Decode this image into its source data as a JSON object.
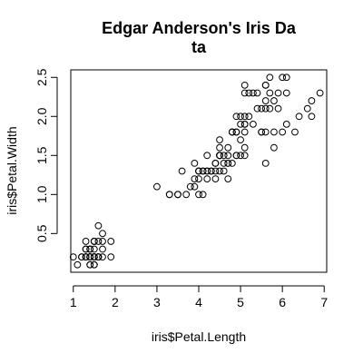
{
  "chart_data": {
    "type": "scatter",
    "title": "Edgar Anderson's Iris Da\nta",
    "xlabel": "iris$Petal.Length",
    "ylabel": "iris$Petal.Width",
    "xlim": [
      0.94,
      7.06
    ],
    "ylim": [
      0.004,
      2.596
    ],
    "xticks": [
      1,
      2,
      3,
      4,
      5,
      6,
      7
    ],
    "yticks": [
      0.5,
      1.0,
      1.5,
      2.0,
      2.5
    ],
    "grid": false,
    "marker": "open-circle",
    "points": [
      [
        1.4,
        0.2
      ],
      [
        1.4,
        0.2
      ],
      [
        1.3,
        0.2
      ],
      [
        1.5,
        0.2
      ],
      [
        1.4,
        0.2
      ],
      [
        1.7,
        0.4
      ],
      [
        1.4,
        0.3
      ],
      [
        1.5,
        0.2
      ],
      [
        1.4,
        0.2
      ],
      [
        1.5,
        0.1
      ],
      [
        1.5,
        0.2
      ],
      [
        1.6,
        0.2
      ],
      [
        1.4,
        0.1
      ],
      [
        1.1,
        0.1
      ],
      [
        1.2,
        0.2
      ],
      [
        1.5,
        0.4
      ],
      [
        1.3,
        0.4
      ],
      [
        1.4,
        0.3
      ],
      [
        1.7,
        0.3
      ],
      [
        1.5,
        0.3
      ],
      [
        1.7,
        0.2
      ],
      [
        1.5,
        0.4
      ],
      [
        1.0,
        0.2
      ],
      [
        1.7,
        0.5
      ],
      [
        1.9,
        0.2
      ],
      [
        1.6,
        0.2
      ],
      [
        1.6,
        0.4
      ],
      [
        1.5,
        0.2
      ],
      [
        1.4,
        0.2
      ],
      [
        1.6,
        0.2
      ],
      [
        1.6,
        0.2
      ],
      [
        1.5,
        0.4
      ],
      [
        1.5,
        0.1
      ],
      [
        1.4,
        0.2
      ],
      [
        1.5,
        0.2
      ],
      [
        1.2,
        0.2
      ],
      [
        1.3,
        0.2
      ],
      [
        1.4,
        0.1
      ],
      [
        1.3,
        0.2
      ],
      [
        1.5,
        0.2
      ],
      [
        1.3,
        0.3
      ],
      [
        1.3,
        0.3
      ],
      [
        1.3,
        0.2
      ],
      [
        1.6,
        0.6
      ],
      [
        1.9,
        0.4
      ],
      [
        1.4,
        0.3
      ],
      [
        1.6,
        0.2
      ],
      [
        1.4,
        0.2
      ],
      [
        1.5,
        0.2
      ],
      [
        1.4,
        0.2
      ],
      [
        4.7,
        1.4
      ],
      [
        4.5,
        1.5
      ],
      [
        4.9,
        1.5
      ],
      [
        4.0,
        1.3
      ],
      [
        4.6,
        1.5
      ],
      [
        4.5,
        1.3
      ],
      [
        4.7,
        1.6
      ],
      [
        3.3,
        1.0
      ],
      [
        4.6,
        1.3
      ],
      [
        3.9,
        1.4
      ],
      [
        3.5,
        1.0
      ],
      [
        4.2,
        1.5
      ],
      [
        4.0,
        1.0
      ],
      [
        4.7,
        1.4
      ],
      [
        3.6,
        1.3
      ],
      [
        4.4,
        1.4
      ],
      [
        4.5,
        1.5
      ],
      [
        4.1,
        1.0
      ],
      [
        4.5,
        1.5
      ],
      [
        3.9,
        1.1
      ],
      [
        4.8,
        1.8
      ],
      [
        4.0,
        1.3
      ],
      [
        4.9,
        1.5
      ],
      [
        4.7,
        1.2
      ],
      [
        4.3,
        1.3
      ],
      [
        4.4,
        1.4
      ],
      [
        4.8,
        1.4
      ],
      [
        5.0,
        1.7
      ],
      [
        4.5,
        1.5
      ],
      [
        3.5,
        1.0
      ],
      [
        3.8,
        1.1
      ],
      [
        3.7,
        1.0
      ],
      [
        3.9,
        1.2
      ],
      [
        5.1,
        1.6
      ],
      [
        4.5,
        1.5
      ],
      [
        4.5,
        1.6
      ],
      [
        4.7,
        1.5
      ],
      [
        4.4,
        1.3
      ],
      [
        4.1,
        1.3
      ],
      [
        4.0,
        1.3
      ],
      [
        4.4,
        1.2
      ],
      [
        4.6,
        1.4
      ],
      [
        4.0,
        1.2
      ],
      [
        3.3,
        1.0
      ],
      [
        4.2,
        1.3
      ],
      [
        4.2,
        1.2
      ],
      [
        4.2,
        1.3
      ],
      [
        4.3,
        1.3
      ],
      [
        3.0,
        1.1
      ],
      [
        4.1,
        1.3
      ],
      [
        6.0,
        2.5
      ],
      [
        5.1,
        1.9
      ],
      [
        5.9,
        2.1
      ],
      [
        5.6,
        1.8
      ],
      [
        5.8,
        2.2
      ],
      [
        6.6,
        2.1
      ],
      [
        4.5,
        1.7
      ],
      [
        6.3,
        1.8
      ],
      [
        5.8,
        1.8
      ],
      [
        6.1,
        2.5
      ],
      [
        5.1,
        2.0
      ],
      [
        5.3,
        1.9
      ],
      [
        5.5,
        2.1
      ],
      [
        5.0,
        2.0
      ],
      [
        5.1,
        2.4
      ],
      [
        5.3,
        2.3
      ],
      [
        5.5,
        1.8
      ],
      [
        6.7,
        2.2
      ],
      [
        6.9,
        2.3
      ],
      [
        5.0,
        1.5
      ],
      [
        5.7,
        2.3
      ],
      [
        4.9,
        2.0
      ],
      [
        6.7,
        2.0
      ],
      [
        4.9,
        1.8
      ],
      [
        5.7,
        2.1
      ],
      [
        6.0,
        1.8
      ],
      [
        4.8,
        1.8
      ],
      [
        4.9,
        1.8
      ],
      [
        5.6,
        2.1
      ],
      [
        5.8,
        1.6
      ],
      [
        6.1,
        1.9
      ],
      [
        6.4,
        2.0
      ],
      [
        5.6,
        2.2
      ],
      [
        5.1,
        1.5
      ],
      [
        5.6,
        1.4
      ],
      [
        6.1,
        2.3
      ],
      [
        5.6,
        2.4
      ],
      [
        5.5,
        1.8
      ],
      [
        4.8,
        1.8
      ],
      [
        5.4,
        2.1
      ],
      [
        5.6,
        2.4
      ],
      [
        5.1,
        2.3
      ],
      [
        5.1,
        1.9
      ],
      [
        5.9,
        2.3
      ],
      [
        5.7,
        2.5
      ],
      [
        5.2,
        2.3
      ],
      [
        5.0,
        1.9
      ],
      [
        5.2,
        2.0
      ],
      [
        5.4,
        2.3
      ],
      [
        5.1,
        1.8
      ]
    ]
  }
}
